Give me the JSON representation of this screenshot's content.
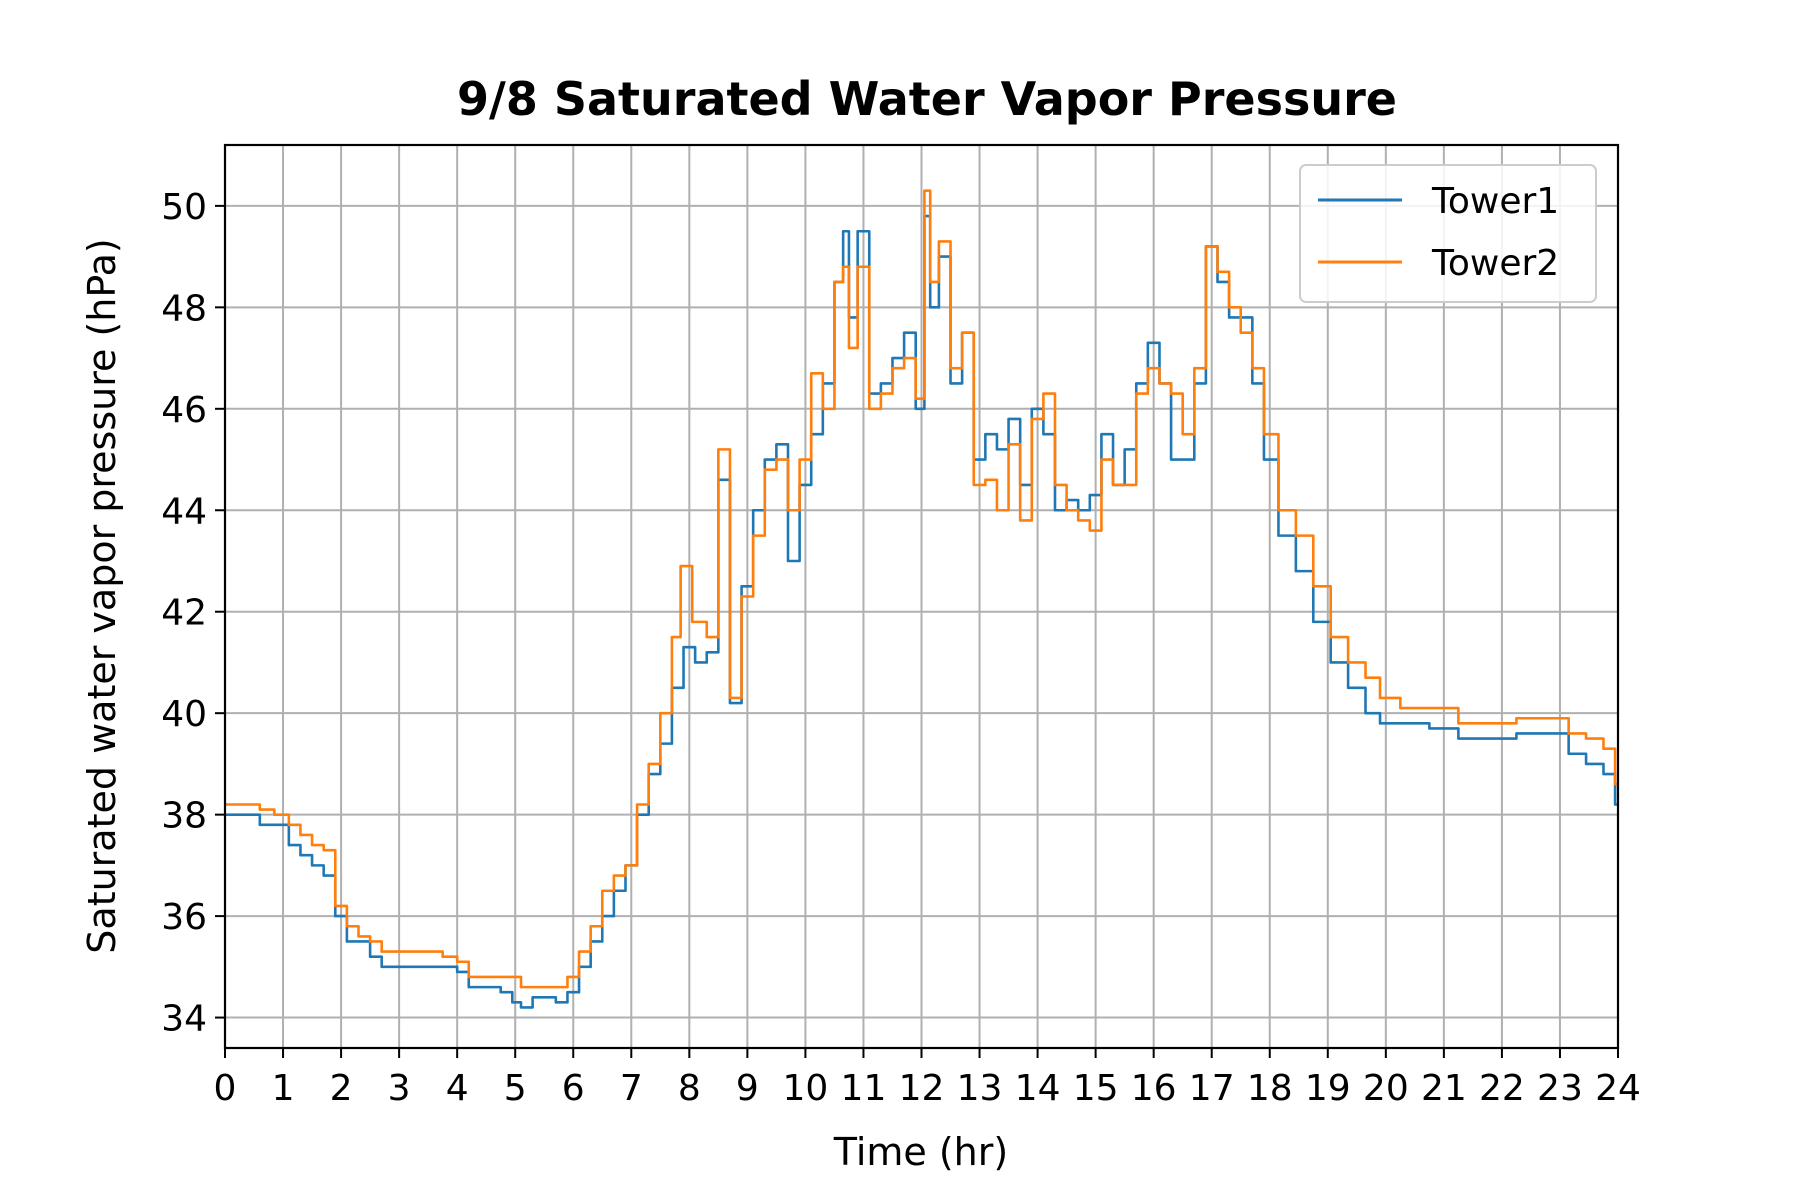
{
  "chart_data": {
    "type": "line",
    "title": "9/8 Saturated Water Vapor Pressure",
    "xlabel": "Time (hr)",
    "ylabel": "Saturated water vapor pressure (hPa)",
    "xlim": [
      0,
      24
    ],
    "ylim": [
      33.4,
      51.2
    ],
    "xticks": [
      0,
      1,
      2,
      3,
      4,
      5,
      6,
      7,
      8,
      9,
      10,
      11,
      12,
      13,
      14,
      15,
      16,
      17,
      18,
      19,
      20,
      21,
      22,
      23,
      24
    ],
    "yticks": [
      34,
      36,
      38,
      40,
      42,
      44,
      46,
      48,
      50
    ],
    "grid": true,
    "legend_position": "top-right",
    "series": [
      {
        "name": "Tower1",
        "color": "#1f77b4",
        "x": [
          0,
          0.5,
          0.7,
          1.0,
          1.2,
          1.4,
          1.6,
          1.8,
          2.0,
          2.2,
          2.4,
          2.6,
          2.8,
          3.0,
          3.3,
          3.6,
          3.9,
          4.1,
          4.3,
          4.6,
          4.9,
          5.0,
          5.2,
          5.4,
          5.6,
          5.8,
          6.0,
          6.2,
          6.4,
          6.6,
          6.8,
          7.0,
          7.2,
          7.4,
          7.6,
          7.8,
          8.0,
          8.2,
          8.4,
          8.6,
          8.8,
          9.0,
          9.2,
          9.4,
          9.6,
          9.8,
          10.0,
          10.2,
          10.4,
          10.6,
          10.7,
          10.8,
          11.0,
          11.2,
          11.4,
          11.6,
          11.8,
          12.0,
          12.1,
          12.2,
          12.4,
          12.6,
          12.8,
          13.0,
          13.2,
          13.4,
          13.6,
          13.8,
          14.0,
          14.2,
          14.4,
          14.6,
          14.8,
          15.0,
          15.2,
          15.4,
          15.6,
          15.8,
          16.0,
          16.2,
          16.4,
          16.6,
          16.8,
          17.0,
          17.2,
          17.4,
          17.6,
          17.8,
          18.0,
          18.3,
          18.6,
          18.9,
          19.2,
          19.5,
          19.8,
          20.0,
          20.5,
          21.0,
          21.5,
          22.0,
          22.5,
          23.0,
          23.3,
          23.6,
          23.9,
          24.0
        ],
        "values": [
          38.0,
          38.0,
          37.8,
          37.8,
          37.4,
          37.2,
          37.0,
          36.8,
          36.0,
          35.5,
          35.5,
          35.2,
          35.0,
          35.0,
          35.0,
          35.0,
          35.0,
          34.9,
          34.6,
          34.6,
          34.5,
          34.3,
          34.2,
          34.4,
          34.4,
          34.3,
          34.5,
          35.0,
          35.5,
          36.0,
          36.5,
          37.0,
          38.0,
          38.8,
          39.4,
          40.5,
          41.3,
          41.0,
          41.2,
          44.6,
          40.2,
          42.5,
          44.0,
          45.0,
          45.3,
          43.0,
          44.5,
          45.5,
          46.5,
          48.5,
          49.5,
          47.8,
          49.5,
          46.3,
          46.5,
          47.0,
          47.5,
          46.0,
          49.8,
          48.0,
          49.0,
          46.5,
          47.5,
          45.0,
          45.5,
          45.2,
          45.8,
          44.5,
          46.0,
          45.5,
          44.0,
          44.2,
          44.0,
          44.3,
          45.5,
          44.5,
          45.2,
          46.5,
          47.3,
          46.5,
          45.0,
          45.0,
          46.5,
          49.2,
          48.5,
          47.8,
          47.8,
          46.5,
          45.0,
          43.5,
          42.8,
          41.8,
          41.0,
          40.5,
          40.0,
          39.8,
          39.8,
          39.7,
          39.5,
          39.5,
          39.6,
          39.6,
          39.2,
          39.0,
          38.8,
          38.2
        ]
      },
      {
        "name": "Tower2",
        "color": "#ff7f0e",
        "x": [
          0,
          0.5,
          0.7,
          1.0,
          1.2,
          1.4,
          1.6,
          1.8,
          2.0,
          2.2,
          2.4,
          2.6,
          2.8,
          3.0,
          3.3,
          3.6,
          3.9,
          4.1,
          4.3,
          4.6,
          4.9,
          5.0,
          5.2,
          5.4,
          5.6,
          5.8,
          6.0,
          6.2,
          6.4,
          6.6,
          6.8,
          7.0,
          7.2,
          7.4,
          7.6,
          7.8,
          7.9,
          8.2,
          8.4,
          8.6,
          8.8,
          9.0,
          9.2,
          9.4,
          9.6,
          9.8,
          10.0,
          10.2,
          10.4,
          10.6,
          10.7,
          10.8,
          11.0,
          11.2,
          11.4,
          11.6,
          11.8,
          12.0,
          12.1,
          12.2,
          12.4,
          12.6,
          12.8,
          13.0,
          13.2,
          13.4,
          13.6,
          13.8,
          14.0,
          14.2,
          14.4,
          14.6,
          14.8,
          15.0,
          15.2,
          15.4,
          15.6,
          15.8,
          16.0,
          16.2,
          16.4,
          16.6,
          16.8,
          17.0,
          17.2,
          17.4,
          17.6,
          17.8,
          18.0,
          18.3,
          18.6,
          18.9,
          19.2,
          19.5,
          19.8,
          20.0,
          20.5,
          21.0,
          21.5,
          22.0,
          22.5,
          23.0,
          23.3,
          23.6,
          23.9,
          24.0
        ],
        "values": [
          38.2,
          38.2,
          38.1,
          38.0,
          37.8,
          37.6,
          37.4,
          37.3,
          36.2,
          35.8,
          35.6,
          35.5,
          35.3,
          35.3,
          35.3,
          35.3,
          35.2,
          35.1,
          34.8,
          34.8,
          34.8,
          34.8,
          34.6,
          34.6,
          34.6,
          34.6,
          34.8,
          35.3,
          35.8,
          36.5,
          36.8,
          37.0,
          38.2,
          39.0,
          40.0,
          41.5,
          42.9,
          41.8,
          41.5,
          45.2,
          40.3,
          42.3,
          43.5,
          44.8,
          45.0,
          44.0,
          45.0,
          46.7,
          46.0,
          48.5,
          48.8,
          47.2,
          48.8,
          46.0,
          46.3,
          46.8,
          47.0,
          46.2,
          50.3,
          48.5,
          49.3,
          46.8,
          47.5,
          44.5,
          44.6,
          44.0,
          45.3,
          43.8,
          45.8,
          46.3,
          44.5,
          44.0,
          43.8,
          43.6,
          45.0,
          44.5,
          44.5,
          46.3,
          46.8,
          46.5,
          46.3,
          45.5,
          46.8,
          49.2,
          48.7,
          48.0,
          47.5,
          46.8,
          45.5,
          44.0,
          43.5,
          42.5,
          41.5,
          41.0,
          40.7,
          40.3,
          40.1,
          40.1,
          39.8,
          39.8,
          39.9,
          39.9,
          39.6,
          39.5,
          39.3,
          38.6
        ]
      }
    ]
  }
}
